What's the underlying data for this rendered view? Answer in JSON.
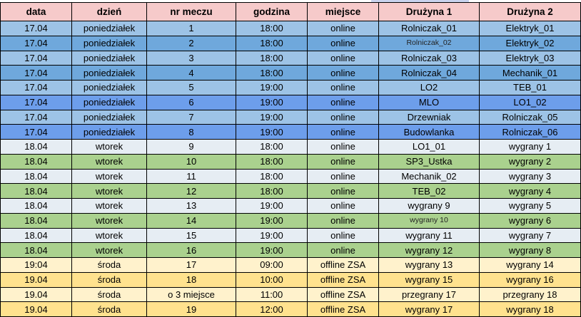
{
  "table": {
    "columns": [
      "data",
      "dzień",
      "nr meczu",
      "godzina",
      "miejsce",
      "Drużyna 1",
      "Drużyna 2"
    ],
    "rows": [
      {
        "band": "mon_light",
        "cells": [
          "17.04",
          "poniedziałek",
          "1",
          "18:00",
          "online",
          "Rolniczak_01",
          "Elektryk_01"
        ]
      },
      {
        "band": "mon_mid",
        "cells": [
          "17.04",
          "poniedziałek",
          "2",
          "18:00",
          "online",
          "Rolniczak_02",
          "Elektryk_02"
        ],
        "small_cols": [
          5
        ]
      },
      {
        "band": "mon_light",
        "cells": [
          "17.04",
          "poniedziałek",
          "3",
          "18:00",
          "online",
          "Rolniczak_03",
          "Elektryk_03"
        ]
      },
      {
        "band": "mon_mid",
        "cells": [
          "17.04",
          "poniedziałek",
          "4",
          "18:00",
          "online",
          "Rolniczak_04",
          "Mechanik_01"
        ]
      },
      {
        "band": "mon_light",
        "cells": [
          "17.04",
          "poniedziałek",
          "5",
          "19:00",
          "online",
          "LO2",
          "TEB_01"
        ]
      },
      {
        "band": "mon_bright",
        "cells": [
          "17.04",
          "poniedziałek",
          "6",
          "19:00",
          "online",
          "MLO",
          "LO1_02"
        ]
      },
      {
        "band": "mon_light",
        "cells": [
          "17.04",
          "poniedziałek",
          "7",
          "19:00",
          "online",
          "Drzewniak",
          "Rolniczak_05"
        ]
      },
      {
        "band": "mon_bright",
        "cells": [
          "17.04",
          "poniedziałek",
          "8",
          "19:00",
          "online",
          "Budowlanka",
          "Rolniczak_06"
        ]
      },
      {
        "band": "tue_light",
        "cells": [
          "18.04",
          "wtorek",
          "9",
          "18:00",
          "online",
          "LO1_01",
          "wygrany 1"
        ]
      },
      {
        "band": "tue_green",
        "cells": [
          "18.04",
          "wtorek",
          "10",
          "18:00",
          "online",
          "SP3_Ustka",
          "wygrany 2"
        ]
      },
      {
        "band": "tue_light",
        "cells": [
          "18.04",
          "wtorek",
          "11",
          "18:00",
          "online",
          "Mechanik_02",
          "wygrany 3"
        ]
      },
      {
        "band": "tue_green",
        "cells": [
          "18.04",
          "wtorek",
          "12",
          "18:00",
          "online",
          "TEB_02",
          "wygrany 4"
        ]
      },
      {
        "band": "tue_light",
        "cells": [
          "18.04",
          "wtorek",
          "13",
          "19:00",
          "online",
          "wygrany 9",
          "wygrany 5"
        ]
      },
      {
        "band": "tue_green",
        "cells": [
          "18.04",
          "wtorek",
          "14",
          "19:00",
          "online",
          "wygrany 10",
          "wygrany 6"
        ],
        "small_cols": [
          5
        ]
      },
      {
        "band": "tue_light",
        "cells": [
          "18.04",
          "wtorek",
          "15",
          "19:00",
          "online",
          "wygrany 11",
          "wygrany 7"
        ]
      },
      {
        "band": "tue_green",
        "cells": [
          "18.04",
          "wtorek",
          "16",
          "19:00",
          "online",
          "wygrany 12",
          "wygrany 8"
        ]
      },
      {
        "band": "wed_light",
        "cells": [
          "19:04",
          "środa",
          "17",
          "09:00",
          "offline ZSA",
          "wygrany 13",
          "wygrany 14"
        ]
      },
      {
        "band": "wed_gold",
        "cells": [
          "19.04",
          "środa",
          "18",
          "10:00",
          "offline ZSA",
          "wygrany 15",
          "wygrany 16"
        ]
      },
      {
        "band": "wed_light",
        "cells": [
          "19.04",
          "środa",
          "o 3 miejsce",
          "11:00",
          "offline ZSA",
          "przegrany 17",
          "przegrany 18"
        ]
      },
      {
        "band": "wed_gold",
        "cells": [
          "19.04",
          "środa",
          "19",
          "12:00",
          "offline ZSA",
          "wygrany 17",
          "wygrany 18"
        ]
      }
    ]
  },
  "palette": {
    "header_bg": "#f6caca",
    "mon_light": "#9dc3e6",
    "mon_mid": "#6fa8dc",
    "mon_bright": "#6d9eeb",
    "tue_light": "#e6edf3",
    "tue_green": "#aad18e",
    "wed_light": "#fff2cc",
    "wed_gold": "#ffe28e",
    "grid_line": "#000000",
    "text": "#000000",
    "top_strip_accent": "#c9d3ee"
  }
}
